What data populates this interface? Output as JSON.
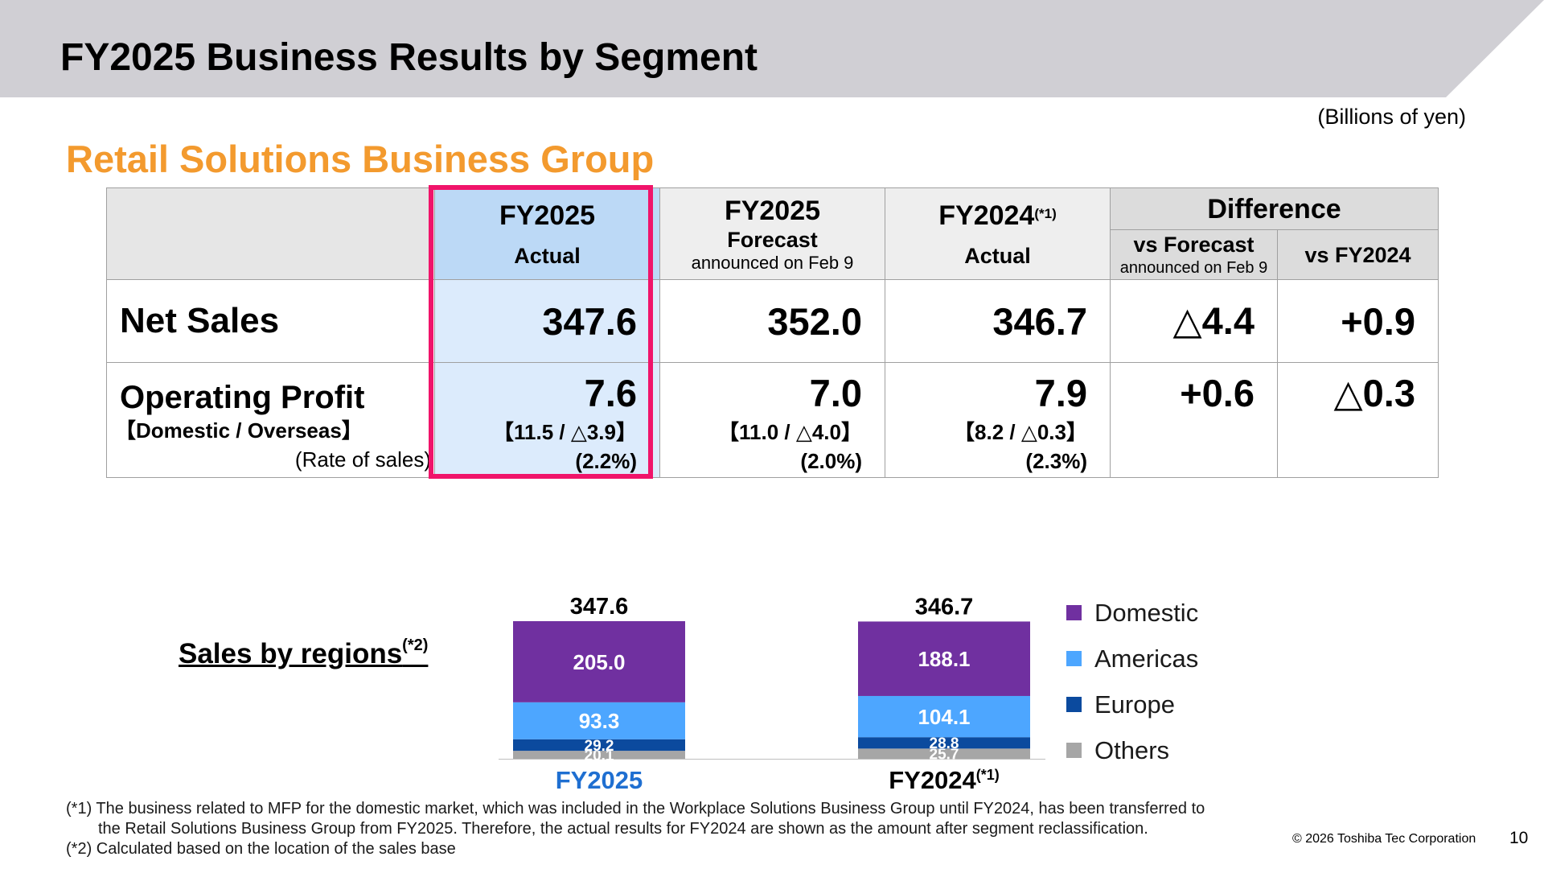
{
  "page_title": "FY2025 Business Results by Segment",
  "unit": "(Billions of yen)",
  "group_title": "Retail Solutions Business Group",
  "table": {
    "col_fy2025_actual": {
      "line1": "FY2025",
      "line2": "Actual"
    },
    "col_fy2025_forecast": {
      "line1": "FY2025",
      "line2": "Forecast",
      "line3": "announced on Feb 9"
    },
    "col_fy2024_actual": {
      "line1": "FY2024",
      "note": "(*1)",
      "line2": "Actual"
    },
    "difference": {
      "title": "Difference",
      "vs_forecast": {
        "line1": "vs Forecast",
        "line2": "announced on Feb 9"
      },
      "vs_fy2024": "vs FY2024"
    },
    "net_sales": {
      "label": "Net Sales",
      "fy2025_actual": "347.6",
      "fy2025_forecast": "352.0",
      "fy2024_actual": "346.7",
      "diff_vs_forecast": "△4.4",
      "diff_vs_fy2024": "+0.9"
    },
    "operating_profit": {
      "label": "Operating Profit",
      "sublabel": "【Domestic / Overseas】",
      "rate_label": "(Rate of sales)",
      "fy2025_actual": {
        "value": "7.6",
        "breakdown": "【11.5 / △3.9】",
        "rate": "(2.2%)"
      },
      "fy2025_forecast": {
        "value": "7.0",
        "breakdown": "【11.0 / △4.0】",
        "rate": "(2.0%)"
      },
      "fy2024_actual": {
        "value": "7.9",
        "breakdown": "【8.2 / △0.3】",
        "rate": "(2.3%)"
      },
      "diff_vs_forecast": "+0.6",
      "diff_vs_fy2024": "△0.3"
    }
  },
  "regions_title": "Sales by regions",
  "regions_note": "(*2)",
  "chart_data": {
    "type": "bar",
    "stacked": true,
    "categories": [
      "FY2025",
      "FY2024"
    ],
    "category_notes": [
      "",
      "(*1)"
    ],
    "category_colors": [
      "#1f6fd1",
      "#000000"
    ],
    "totals": [
      "347.6",
      "346.7"
    ],
    "series": [
      {
        "name": "Domestic",
        "values": [
          205.0,
          188.1
        ],
        "color": "#7030A0"
      },
      {
        "name": "Americas",
        "values": [
          93.3,
          104.1
        ],
        "color": "#4DA6FF"
      },
      {
        "name": "Europe",
        "values": [
          29.2,
          28.8
        ],
        "color": "#0B4A9E"
      },
      {
        "name": "Others",
        "values": [
          20.1,
          25.7
        ],
        "color": "#A6A6A6"
      }
    ],
    "legend_position": "right"
  },
  "footnotes": {
    "n1_line1": "(*1) The business related to MFP for the domestic market, which was included in the Workplace Solutions Business Group until FY2024, has been transferred to",
    "n1_line2": "the Retail Solutions Business Group from FY2025. Therefore, the actual results for FY2024 are shown as the amount after segment reclassification.",
    "n2": "(*2) Calculated based on the location of the sales base"
  },
  "copyright": "© 2026 Toshiba Tec Corporation",
  "page_number": "10",
  "colors": {
    "accent_orange": "#F39A2E",
    "highlight_pink": "#F0146A",
    "banner_gray": "#D0CFD4"
  }
}
